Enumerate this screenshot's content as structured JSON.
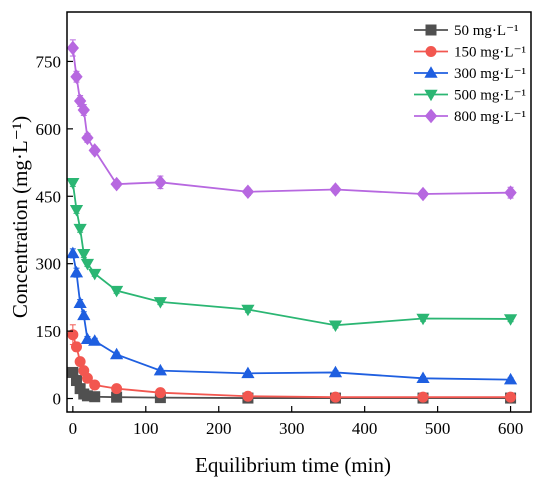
{
  "chart_data": {
    "type": "line",
    "title": "",
    "xlabel": "Equilibrium time (min)",
    "ylabel": "Concentration (mg·L⁻¹)",
    "xlim": [
      -8,
      628
    ],
    "ylim": [
      -30,
      860
    ],
    "xticks": [
      0,
      100,
      200,
      300,
      400,
      500,
      600
    ],
    "yticks": [
      0,
      150,
      300,
      450,
      600,
      750
    ],
    "grid": false,
    "legend_position": "top-right",
    "x": [
      0,
      5,
      10,
      15,
      20,
      30,
      60,
      120,
      240,
      360,
      480,
      600
    ],
    "series": [
      {
        "name": "50  mg·L⁻¹",
        "color": "#505050",
        "marker": "square",
        "values": [
          58,
          40,
          22,
          10,
          6,
          4,
          3,
          2,
          1,
          1,
          1,
          1
        ],
        "errors": [
          10,
          6,
          4,
          3,
          2,
          2,
          2,
          2,
          1,
          1,
          1,
          1
        ]
      },
      {
        "name": "150 mg·L⁻¹",
        "color": "#f25750",
        "marker": "circle",
        "values": [
          142,
          115,
          82,
          62,
          45,
          30,
          22,
          13,
          5,
          3,
          3,
          3
        ],
        "errors": [
          22,
          10,
          8,
          6,
          5,
          4,
          4,
          3,
          2,
          2,
          2,
          2
        ]
      },
      {
        "name": "300 mg·L⁻¹",
        "color": "#1f5fe0",
        "marker": "triangle-up",
        "values": [
          323,
          280,
          212,
          185,
          132,
          128,
          98,
          62,
          56,
          58,
          45,
          42
        ],
        "errors": [
          10,
          10,
          8,
          8,
          6,
          6,
          5,
          4,
          4,
          4,
          4,
          4
        ]
      },
      {
        "name": "500 mg·L⁻¹",
        "color": "#2bb673",
        "marker": "triangle-down",
        "values": [
          480,
          420,
          378,
          322,
          300,
          278,
          240,
          215,
          198,
          163,
          178,
          177
        ],
        "errors": [
          8,
          8,
          8,
          8,
          6,
          6,
          6,
          6,
          6,
          6,
          6,
          6
        ]
      },
      {
        "name": "800 mg·L⁻¹",
        "color": "#b768e0",
        "marker": "diamond",
        "values": [
          780,
          716,
          662,
          642,
          580,
          552,
          477,
          481,
          460,
          465,
          455,
          458
        ],
        "errors": [
          18,
          12,
          12,
          12,
          10,
          8,
          8,
          14,
          8,
          8,
          8,
          12
        ]
      }
    ]
  }
}
